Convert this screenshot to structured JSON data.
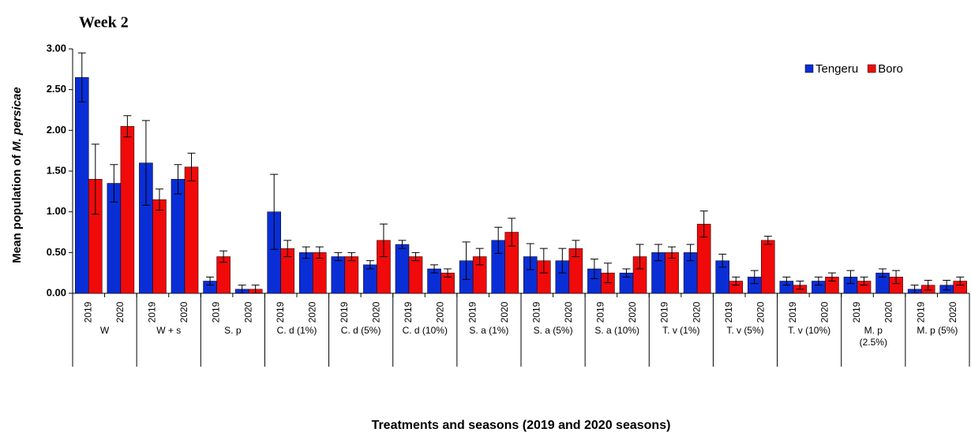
{
  "chart_data": {
    "type": "bar",
    "title": "Week 2",
    "ylabel": "Mean population  of ",
    "ylabel_italic": "M. persicae",
    "xlabel": "Treatments and seasons  (2019  and 2020  seasons)",
    "groups": [
      "W",
      "W + s",
      "S. p",
      "C. d (1%)",
      "C. d (5%)",
      "C. d (10%)",
      "S. a (1%)",
      "S. a (5%)",
      "S. a (10%)",
      "T. v  (1%)",
      "T. v  (5%)",
      "T. v (10%)",
      "M. p (2.5%)",
      "M. p (5%)"
    ],
    "categories": [
      "2019",
      "2020",
      "2019",
      "2020",
      "2019",
      "2020",
      "2019",
      "2020",
      "2019",
      "2020",
      "2019",
      "2020",
      "2019",
      "2020",
      "2019",
      "2020",
      "2019",
      "2020",
      "2019",
      "2020",
      "2019",
      "2020",
      "2019",
      "2020",
      "2019",
      "2020",
      "2019",
      "2020"
    ],
    "series": [
      {
        "name": "Tengeru",
        "color": "#0a2ed6",
        "values": [
          2.65,
          1.35,
          1.6,
          1.4,
          0.15,
          0.05,
          1.0,
          0.5,
          0.45,
          0.35,
          0.6,
          0.3,
          0.4,
          0.65,
          0.45,
          0.4,
          0.3,
          0.25,
          0.5,
          0.5,
          0.4,
          0.2,
          0.15,
          0.15,
          0.2,
          0.25,
          0.05,
          0.1
        ],
        "errors": [
          0.3,
          0.23,
          0.52,
          0.18,
          0.05,
          0.05,
          0.46,
          0.07,
          0.05,
          0.05,
          0.05,
          0.05,
          0.23,
          0.16,
          0.16,
          0.15,
          0.12,
          0.05,
          0.1,
          0.1,
          0.08,
          0.08,
          0.05,
          0.05,
          0.08,
          0.05,
          0.05,
          0.06
        ]
      },
      {
        "name": "Boro",
        "color": "#f00a0a",
        "values": [
          1.4,
          2.05,
          1.15,
          1.55,
          0.45,
          0.05,
          0.55,
          0.5,
          0.45,
          0.65,
          0.45,
          0.25,
          0.45,
          0.75,
          0.4,
          0.55,
          0.25,
          0.45,
          0.5,
          0.85,
          0.15,
          0.65,
          0.1,
          0.2,
          0.15,
          0.2,
          0.1,
          0.15
        ],
        "errors": [
          0.43,
          0.13,
          0.13,
          0.17,
          0.07,
          0.05,
          0.1,
          0.07,
          0.05,
          0.2,
          0.05,
          0.05,
          0.1,
          0.17,
          0.15,
          0.1,
          0.12,
          0.15,
          0.07,
          0.16,
          0.05,
          0.05,
          0.05,
          0.05,
          0.05,
          0.08,
          0.06,
          0.05
        ]
      }
    ],
    "ylim": [
      0,
      3
    ],
    "yticks": [
      {
        "value": 0,
        "label": "0.00"
      },
      {
        "value": 0.5,
        "label": "0.50"
      },
      {
        "value": 1,
        "label": "1.00"
      },
      {
        "value": 1.5,
        "label": "1.50"
      },
      {
        "value": 2,
        "label": "2.00"
      },
      {
        "value": 2.5,
        "label": "2.50"
      },
      {
        "value": 3,
        "label": "3.00"
      }
    ],
    "legend": "upper right"
  }
}
